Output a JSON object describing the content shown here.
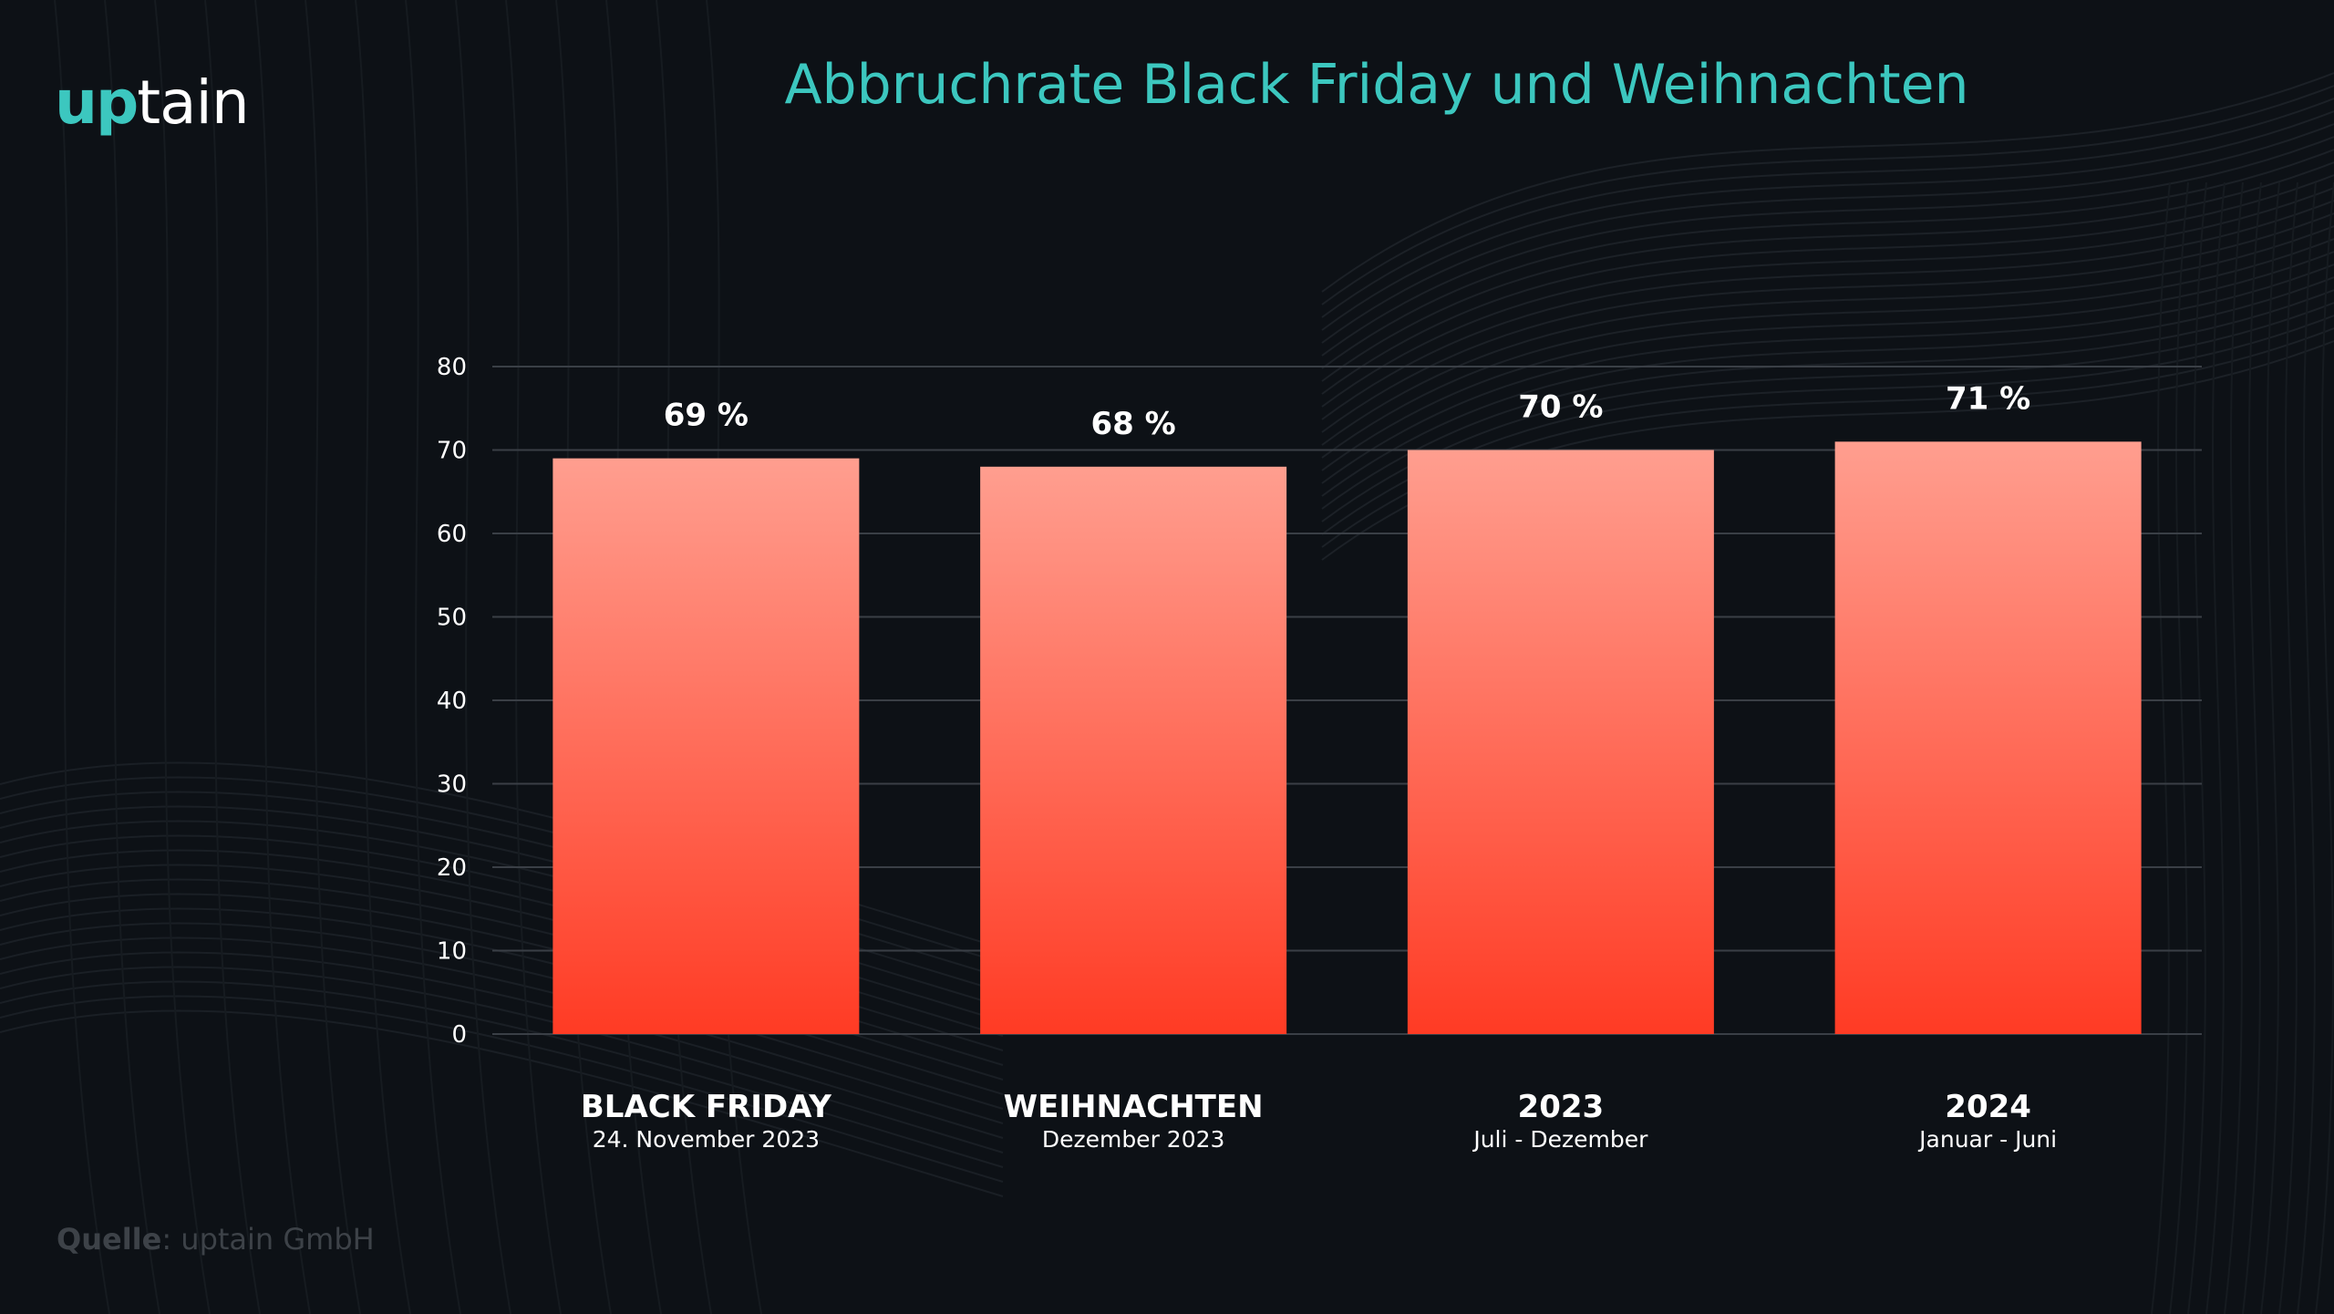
{
  "brand": {
    "logo_part1": "up",
    "logo_part2": "tain",
    "accent_color": "#3cc7bf"
  },
  "page": {
    "title": "Abbruchrate Black Friday und Weihnachten"
  },
  "source": {
    "label": "Quelle",
    "separator": ": ",
    "value": "uptain GmbH"
  },
  "chart_data": {
    "type": "bar",
    "title": "Abbruchrate Black Friday und Weihnachten",
    "categories": [
      "BLACK FRIDAY",
      "WEIHNACHTEN",
      "2023",
      "2024"
    ],
    "sublabels": [
      "24. November 2023",
      "Dezember 2023",
      "Juli - Dezember",
      "Januar - Juni"
    ],
    "values": [
      69,
      68,
      70,
      71
    ],
    "data_labels": [
      "69 %",
      "68 %",
      "70 %",
      "71 %"
    ],
    "xlabel": "",
    "ylabel": "",
    "ylim": [
      0,
      80
    ],
    "yticks": [
      0,
      10,
      20,
      30,
      40,
      50,
      60,
      70,
      80
    ],
    "grid": true,
    "legend": "none",
    "bar_gradient": {
      "top": "#ff9e8f",
      "bottom": "#ff3b24"
    }
  }
}
